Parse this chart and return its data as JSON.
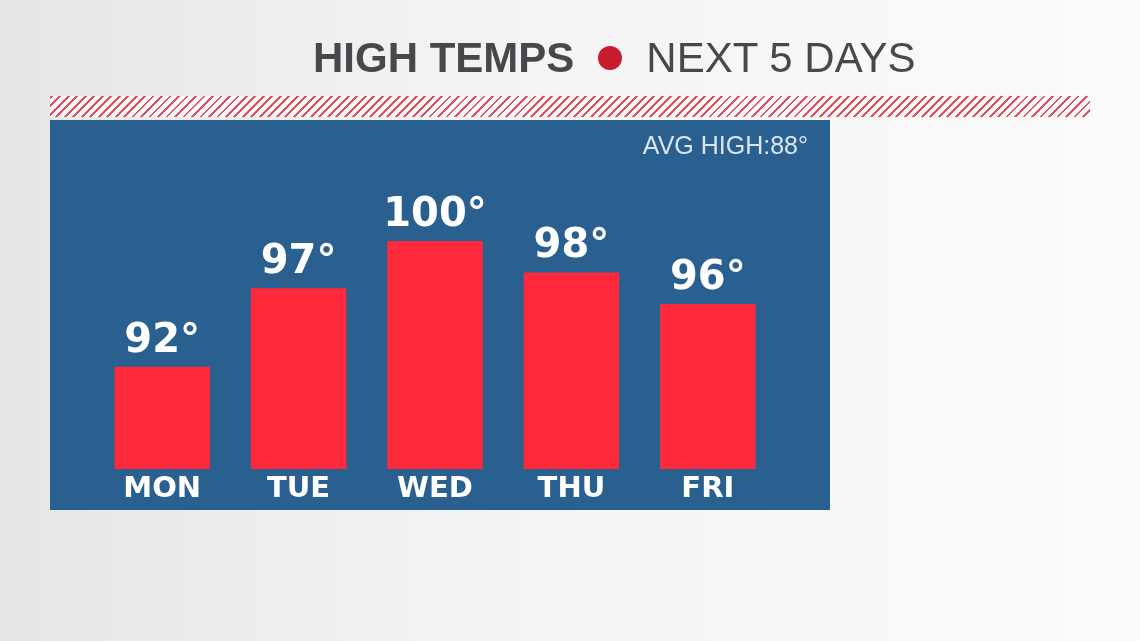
{
  "chart_data": {
    "type": "bar",
    "title": "HIGH TEMPS",
    "subtitle": "NEXT 5 DAYS",
    "categories": [
      "MON",
      "TUE",
      "WED",
      "THU",
      "FRI"
    ],
    "values": [
      92,
      97,
      100,
      98,
      96
    ],
    "value_labels": [
      "92°",
      "97°",
      "100°",
      "98°",
      "96°"
    ],
    "color": "#fe2a3b",
    "ylim": [
      85.5,
      100
    ],
    "tick_labels": "x",
    "annotations": [
      "AVG HIGH:88°"
    ]
  }
}
